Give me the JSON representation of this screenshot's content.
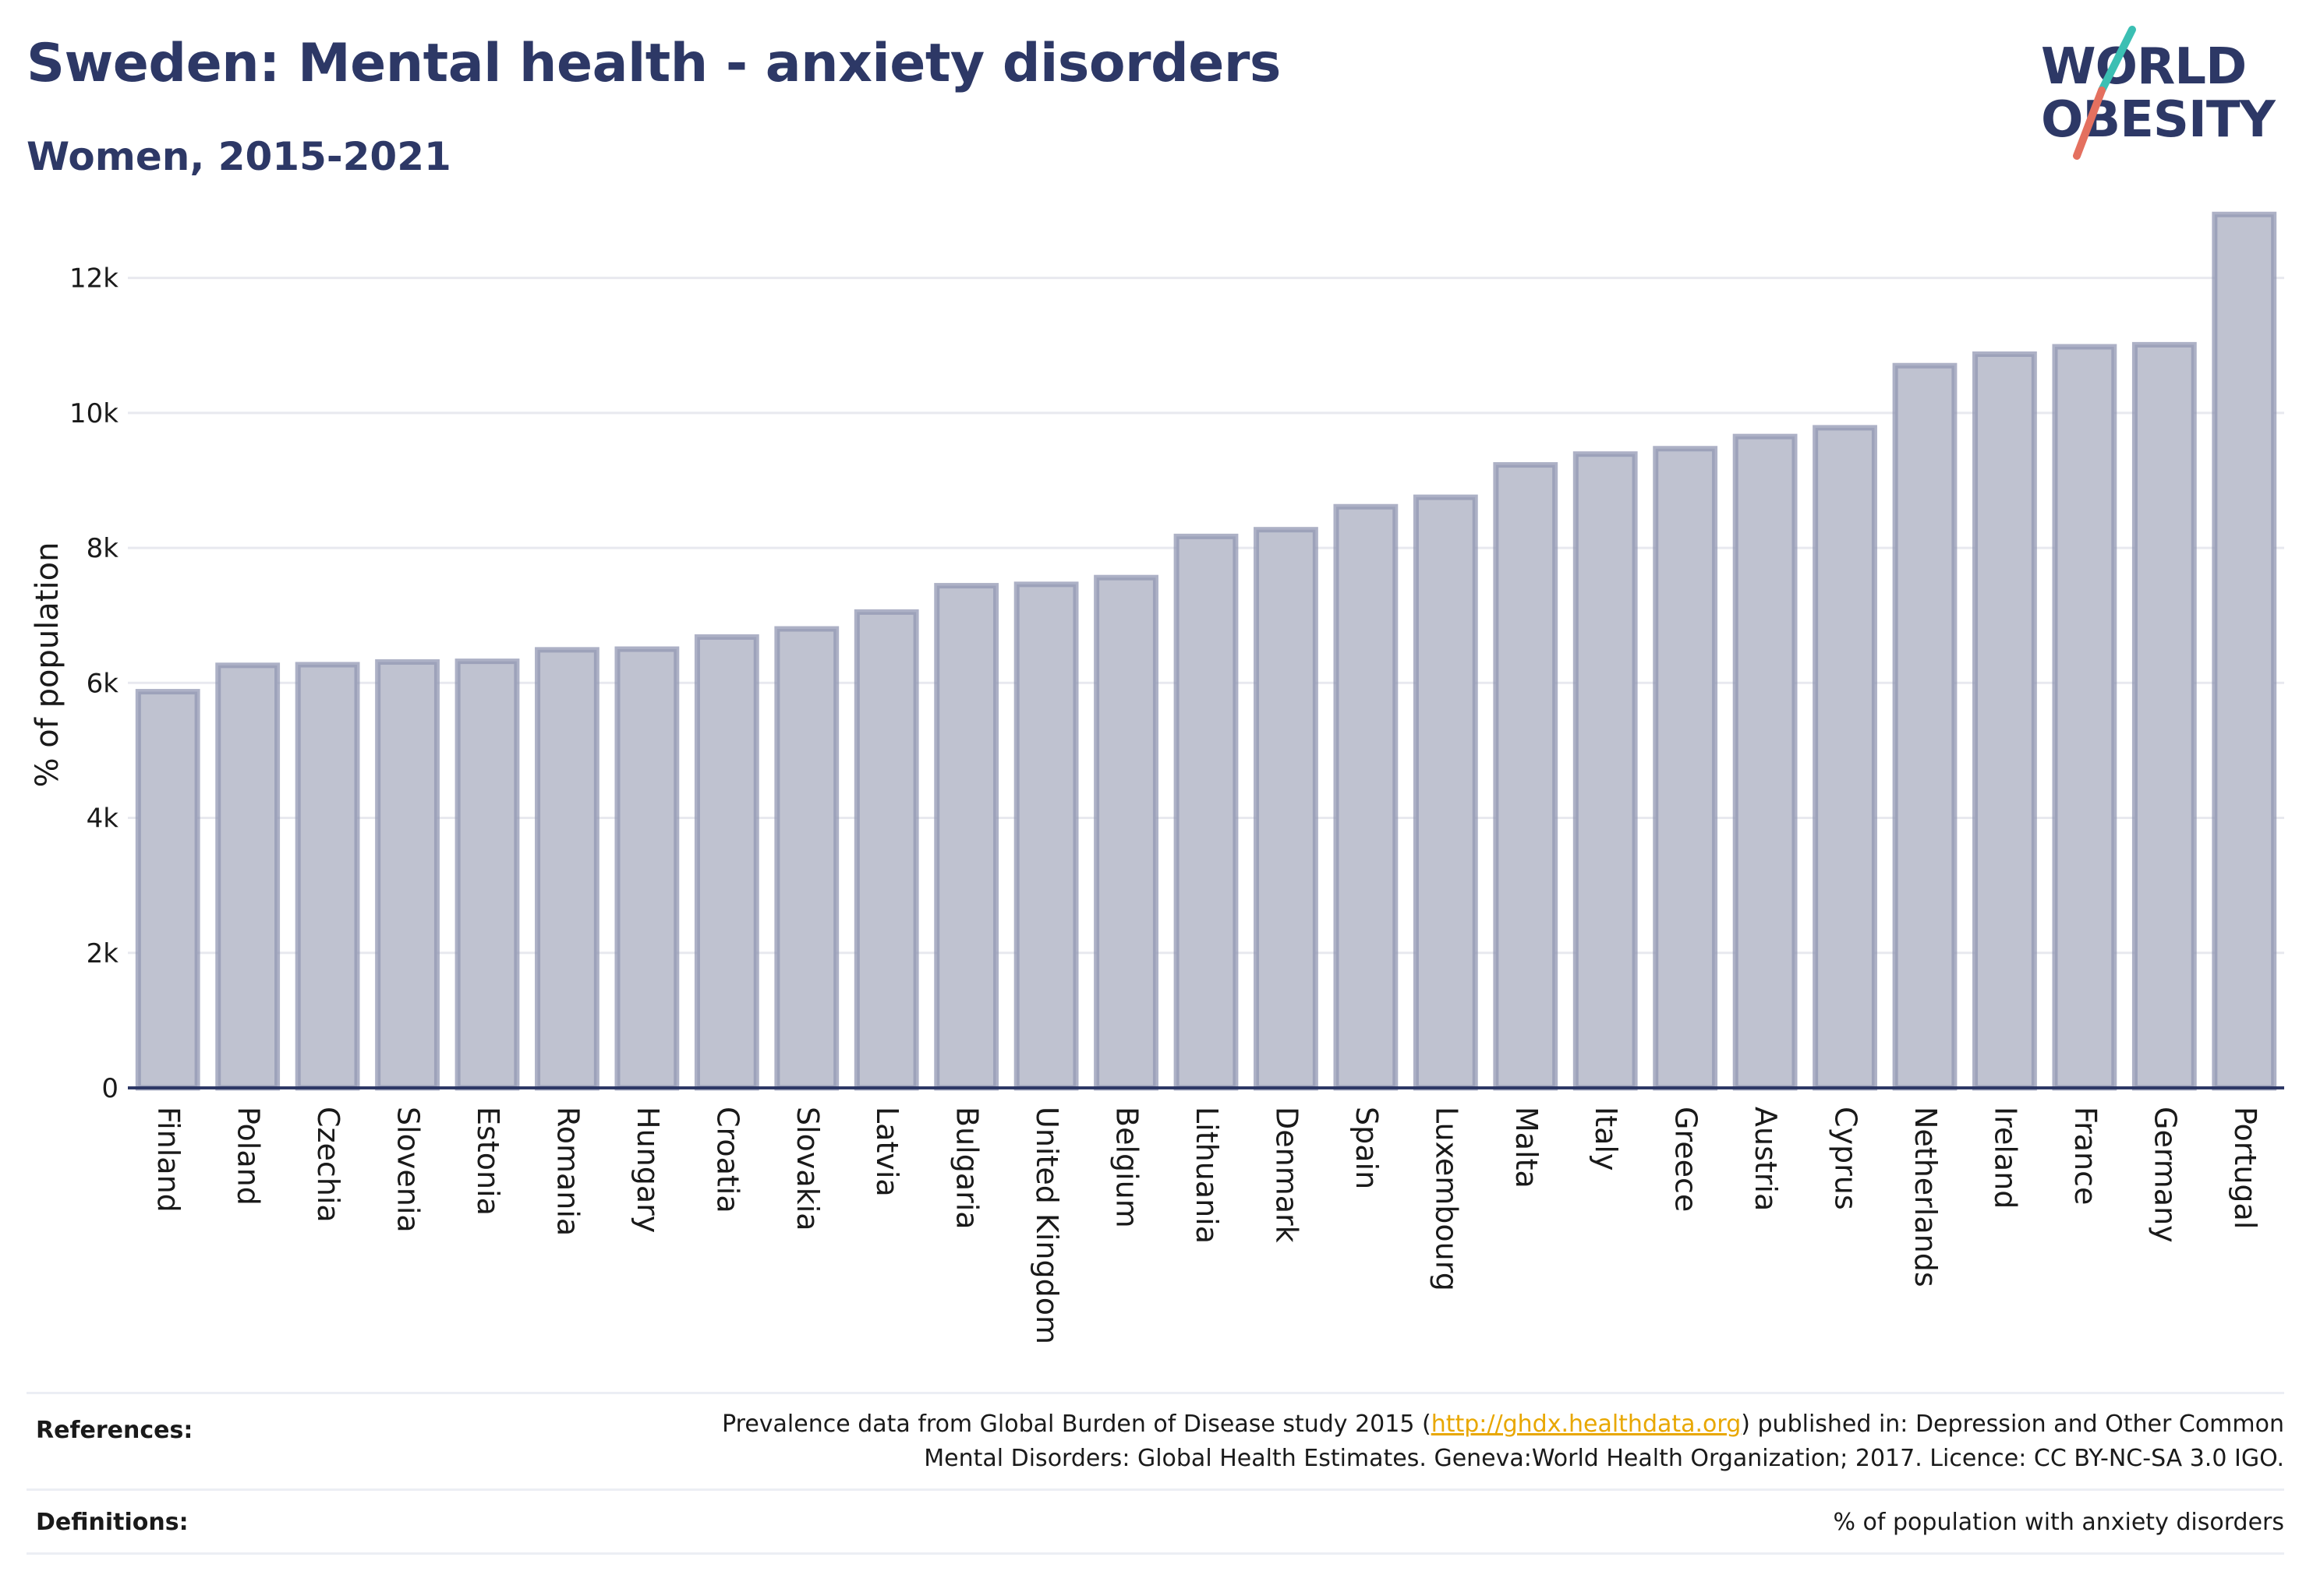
{
  "title": "Sweden: Mental health - anxiety disorders",
  "subtitle": "Women, 2015-2021",
  "logo": {
    "line1": "WORLD",
    "line2": "OBESITY"
  },
  "colors": {
    "title": "#2d3866",
    "bar_fill": "#bfc2d0",
    "bar_stroke": "#9297b3",
    "gridline": "#e8e9ef",
    "axis": "#2d3866",
    "link": "#e8a700",
    "logo_teal": "#3bbfb3",
    "logo_coral": "#e4705f"
  },
  "chart_data": {
    "type": "bar",
    "ylabel": "% of population",
    "xlabel": "",
    "ylim": [
      0,
      13000
    ],
    "yticks": [
      0,
      2000,
      4000,
      6000,
      8000,
      10000,
      12000
    ],
    "ytick_labels": [
      "0",
      "2k",
      "4k",
      "6k",
      "8k",
      "10k",
      "12k"
    ],
    "grid": true,
    "categories": [
      "Finland",
      "Poland",
      "Czechia",
      "Slovenia",
      "Estonia",
      "Romania",
      "Hungary",
      "Croatia",
      "Slovakia",
      "Latvia",
      "Bulgaria",
      "United Kingdom",
      "Belgium",
      "Lithuania",
      "Denmark",
      "Spain",
      "Luxembourg",
      "Malta",
      "Italy",
      "Greece",
      "Austria",
      "Cyprus",
      "Netherlands",
      "Ireland",
      "France",
      "Germany",
      "Portugal"
    ],
    "values": [
      5870,
      6260,
      6270,
      6310,
      6320,
      6490,
      6500,
      6680,
      6800,
      7050,
      7440,
      7460,
      7560,
      8170,
      8270,
      8610,
      8750,
      9230,
      9390,
      9470,
      9650,
      9780,
      10700,
      10870,
      10980,
      11010,
      12940
    ]
  },
  "footer": {
    "references_label": "References:",
    "references_text_1": "Prevalence data from Global Burden of Disease study 2015 (",
    "references_link": "http://ghdx.healthdata.org",
    "references_text_2": ") published in: Depression and Other Common",
    "references_text_3": "Mental Disorders: Global Health Estimates. Geneva:World Health Organization; 2017. Licence: CC BY-NC-SA 3.0 IGO.",
    "definitions_label": "Definitions:",
    "definitions_text": "% of population with anxiety disorders"
  }
}
